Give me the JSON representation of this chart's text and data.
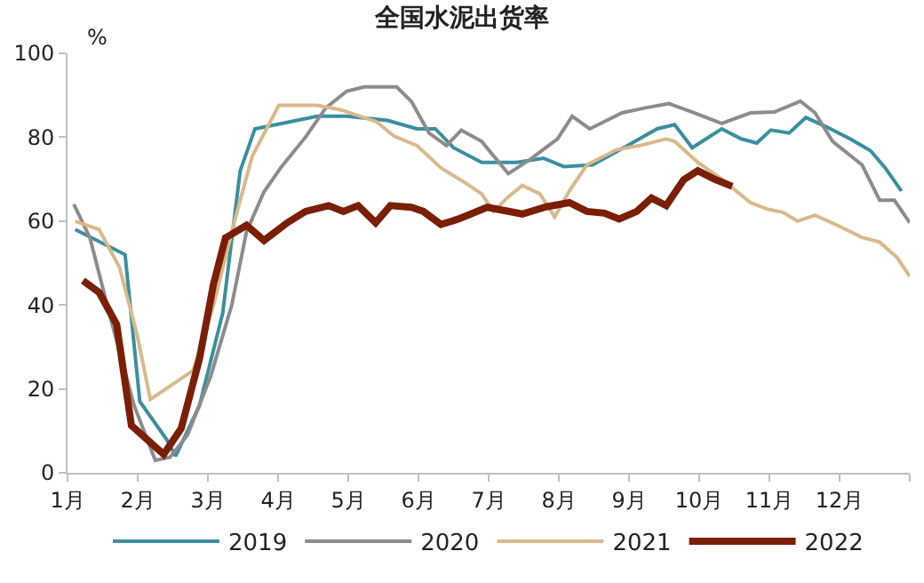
{
  "chart_data": {
    "type": "line",
    "title": "全国水泥出货率",
    "ylabel": "%",
    "xlim": [
      1,
      13
    ],
    "xticks": [
      {
        "value": 1,
        "label": "1月"
      },
      {
        "value": 2,
        "label": "2月"
      },
      {
        "value": 3,
        "label": "3月"
      },
      {
        "value": 4,
        "label": "4月"
      },
      {
        "value": 5,
        "label": "5月"
      },
      {
        "value": 6,
        "label": "6月"
      },
      {
        "value": 7,
        "label": "7月"
      },
      {
        "value": 8,
        "label": "8月"
      },
      {
        "value": 9,
        "label": "9月"
      },
      {
        "value": 10,
        "label": "10月"
      },
      {
        "value": 11,
        "label": "11月"
      },
      {
        "value": 12,
        "label": "12月"
      },
      {
        "value": 13,
        "label": null
      }
    ],
    "ylim": [
      0,
      100
    ],
    "yticks": [
      0,
      20,
      40,
      60,
      80,
      100
    ],
    "legend": "bottom",
    "marker": "none",
    "line_style": "solid",
    "series": [
      {
        "name": "2019",
        "color": "#3a8fa0",
        "x": [
          1.11,
          1.82,
          2.03,
          2.41,
          2.54,
          2.88,
          3.21,
          3.46,
          3.67,
          3.97,
          4.56,
          4.98,
          5.56,
          5.98,
          6.24,
          6.5,
          6.9,
          7.0,
          7.4,
          7.78,
          8.07,
          8.48,
          8.98,
          9.4,
          9.65,
          9.9,
          10.32,
          10.6,
          10.82,
          11.02,
          11.28,
          11.52,
          11.82,
          12.15,
          12.44,
          12.65,
          12.88
        ],
        "values": [
          58,
          52,
          17,
          8,
          4,
          16,
          38,
          72,
          82,
          83,
          85,
          85,
          84,
          82,
          82,
          77.5,
          74,
          74,
          74,
          75,
          73,
          73.4,
          78,
          82,
          83,
          77.5,
          82,
          79.6,
          78.6,
          81.7,
          81,
          84.7,
          82.4,
          79.6,
          76.8,
          72.7,
          67.2
        ]
      },
      {
        "name": "2020",
        "color": "#8c8c8c",
        "x": [
          1.09,
          1.32,
          1.61,
          1.95,
          2.25,
          2.46,
          2.71,
          3.04,
          3.34,
          3.55,
          3.8,
          4.05,
          4.39,
          4.68,
          4.98,
          5.23,
          5.69,
          5.9,
          6.15,
          6.4,
          6.61,
          6.9,
          7.28,
          7.6,
          7.98,
          8.19,
          8.44,
          8.9,
          9.23,
          9.57,
          9.9,
          10.32,
          10.73,
          11.07,
          11.44,
          11.65,
          11.9,
          12.32,
          12.57,
          12.78,
          13.0
        ],
        "values": [
          64,
          56,
          37,
          16,
          3,
          3.7,
          9,
          23,
          40,
          57.5,
          67,
          73,
          80,
          87,
          91,
          92,
          92,
          88.5,
          81,
          78,
          81.7,
          79,
          71.3,
          74.8,
          79.6,
          85,
          82,
          85.8,
          87,
          88,
          86,
          83.3,
          85.8,
          86,
          88.6,
          85.8,
          79,
          73.4,
          65,
          65,
          59.6
        ]
      },
      {
        "name": "2021",
        "color": "#d9b98a",
        "x": [
          1.11,
          1.45,
          1.74,
          1.99,
          2.18,
          2.79,
          3.08,
          3.38,
          3.63,
          4.01,
          4.56,
          4.9,
          5.4,
          5.65,
          5.98,
          6.32,
          6.66,
          6.9,
          7.07,
          7.28,
          7.48,
          7.73,
          7.94,
          8.15,
          8.4,
          8.82,
          9.15,
          9.53,
          9.65,
          9.98,
          10.32,
          10.73,
          10.98,
          11.19,
          11.4,
          11.65,
          11.98,
          12.32,
          12.57,
          12.82,
          13.0
        ],
        "values": [
          60,
          58,
          49,
          33,
          17.5,
          24.4,
          40,
          60,
          75.4,
          87.6,
          87.6,
          86.5,
          83.7,
          80.3,
          78,
          72.7,
          69.2,
          66.5,
          62.3,
          65.8,
          68.5,
          66.5,
          61,
          67.2,
          73.4,
          77,
          78,
          79.6,
          79,
          74,
          70,
          64.4,
          62.8,
          62.1,
          60,
          61.4,
          58.9,
          56.1,
          55,
          51.3,
          46.8
        ]
      },
      {
        "name": "2022",
        "color": "#7b1e06",
        "x": [
          1.22,
          1.45,
          1.7,
          1.91,
          2.37,
          2.62,
          2.88,
          3.08,
          3.25,
          3.55,
          3.8,
          4.13,
          4.39,
          4.72,
          4.93,
          5.14,
          5.39,
          5.6,
          5.9,
          6.07,
          6.32,
          6.57,
          6.98,
          7.48,
          7.82,
          8.15,
          8.4,
          8.65,
          8.86,
          9.11,
          9.32,
          9.53,
          9.78,
          9.98,
          10.23,
          10.47
        ],
        "values": [
          45.8,
          43,
          35.4,
          11.3,
          4.4,
          10.6,
          27.2,
          45,
          56,
          59,
          55.4,
          59.6,
          62.3,
          63.7,
          62.3,
          63.7,
          59.6,
          63.7,
          63.3,
          62.3,
          59.2,
          60.5,
          63.3,
          61.7,
          63.4,
          64.4,
          62.3,
          61.9,
          60.5,
          62.3,
          65.5,
          63.7,
          69.9,
          72,
          69.9,
          68.3
        ]
      }
    ]
  }
}
